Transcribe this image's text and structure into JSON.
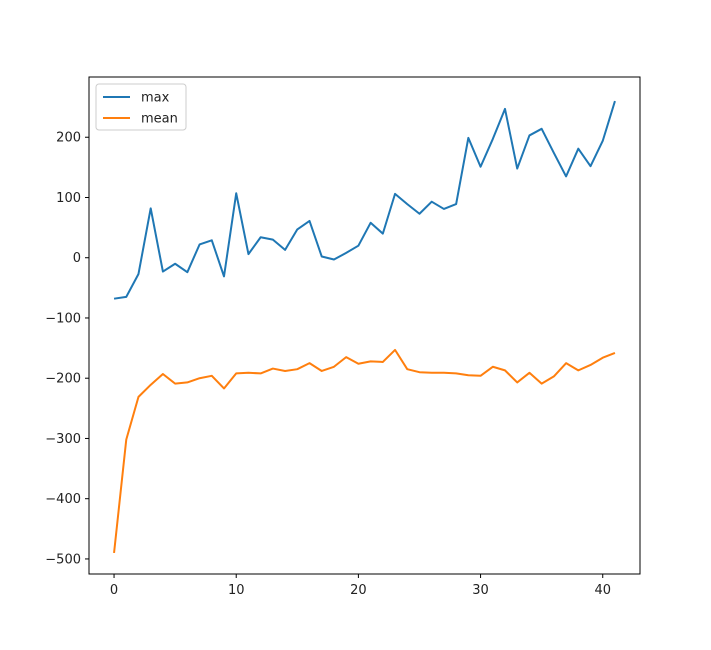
{
  "chart_data": {
    "type": "line",
    "title": "",
    "xlabel": "",
    "ylabel": "",
    "xlim": [
      -2.05,
      43.05
    ],
    "ylim": [
      -525,
      300
    ],
    "xticks": [
      0,
      10,
      20,
      30,
      40
    ],
    "yticks": [
      -500,
      -400,
      -300,
      -200,
      -100,
      0,
      100,
      200
    ],
    "grid": false,
    "legend": {
      "position": "top-left"
    },
    "x": [
      0,
      1,
      2,
      3,
      4,
      5,
      6,
      7,
      8,
      9,
      10,
      11,
      12,
      13,
      14,
      15,
      16,
      17,
      18,
      19,
      20,
      21,
      22,
      23,
      24,
      25,
      26,
      27,
      28,
      29,
      30,
      31,
      32,
      33,
      34,
      35,
      36,
      37,
      38,
      39,
      40,
      41
    ],
    "series": [
      {
        "name": "max",
        "color": "#1f77b4",
        "values": [
          -68,
          -65,
          -27,
          82,
          -23,
          -10,
          -24,
          22,
          29,
          -31,
          107,
          6,
          34,
          30,
          13,
          47,
          61,
          2,
          -3,
          8,
          20,
          58,
          40,
          106,
          89,
          73,
          93,
          81,
          89,
          199,
          151,
          197,
          247,
          148,
          203,
          214,
          174,
          135,
          181,
          152,
          194,
          260
        ]
      },
      {
        "name": "mean",
        "color": "#ff7f0e",
        "values": [
          -490,
          -302,
          -231,
          -211,
          -193,
          -209,
          -207,
          -200,
          -196,
          -217,
          -192,
          -191,
          -192,
          -184,
          -188,
          -185,
          -175,
          -188,
          -181,
          -165,
          -176,
          -172,
          -173,
          -153,
          -185,
          -190,
          -191,
          -191,
          -192,
          -195,
          -196,
          -181,
          -187,
          -207,
          -191,
          -209,
          -197,
          -175,
          -187,
          -178,
          -166,
          -158
        ]
      }
    ]
  }
}
